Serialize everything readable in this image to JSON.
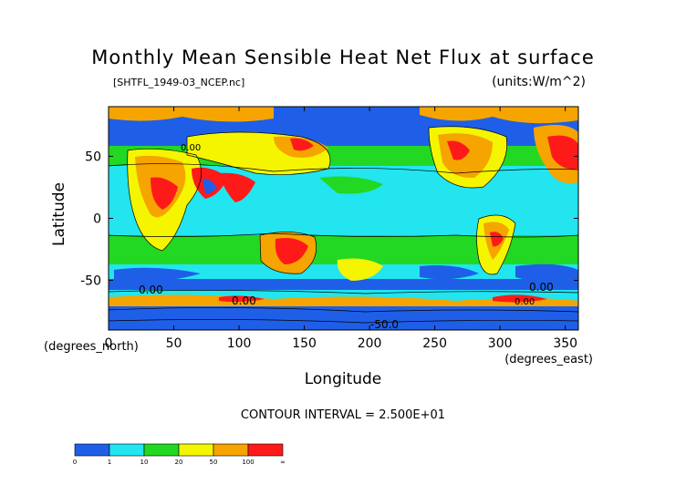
{
  "chart_data": {
    "type": "heatmap",
    "title": "Monthly Mean Sensible Heat Net Flux at surface",
    "subtitle": "[SHTFL_1949-03_NCEP.nc]",
    "units": "(units:W/m^2)",
    "xlabel": "Longitude",
    "ylabel": "Latitude",
    "x_unit_note": "(degrees_east)",
    "y_unit_note": "(degrees_north)",
    "xlim": [
      0,
      360
    ],
    "ylim": [
      -90,
      90
    ],
    "x_ticks": [
      0,
      50,
      100,
      150,
      200,
      250,
      300,
      350
    ],
    "y_ticks": [
      -50,
      0,
      50
    ],
    "contour_interval_text": "CONTOUR INTERVAL = 2.500E+01",
    "contour_labels": [
      "0.00",
      "0.00",
      "0.00",
      "0.00",
      "-50.0",
      "0.00"
    ],
    "colorbar": {
      "levels": [
        "0",
        "1",
        "10",
        "20",
        "50",
        "100",
        "∞"
      ],
      "colors": [
        "#1f5fe8",
        "#22e5f0",
        "#22d822",
        "#f5f500",
        "#f5a400",
        "#ff1a1a"
      ]
    }
  }
}
